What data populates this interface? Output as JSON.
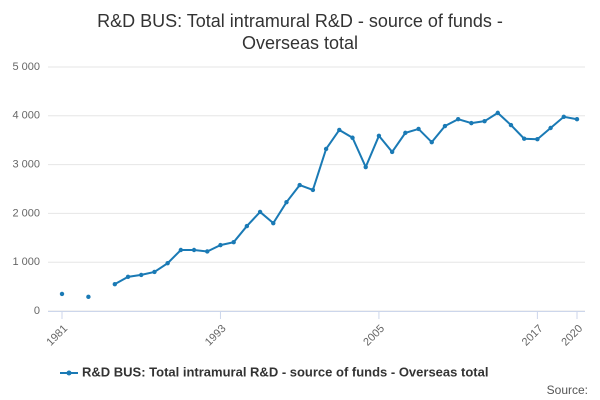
{
  "chart_data": {
    "type": "line",
    "title": "R&D BUS: Total intramural R&D - source of funds - Overseas total",
    "x": [
      1981,
      1982,
      1983,
      1984,
      1985,
      1986,
      1987,
      1988,
      1989,
      1990,
      1991,
      1992,
      1993,
      1994,
      1995,
      1996,
      1997,
      1998,
      1999,
      2000,
      2001,
      2002,
      2003,
      2004,
      2005,
      2006,
      2007,
      2008,
      2009,
      2010,
      2011,
      2012,
      2013,
      2014,
      2015,
      2016,
      2017,
      2018,
      2019,
      2020
    ],
    "series": [
      {
        "name": "R&D BUS: Total intramural R&D - source of funds - Overseas total",
        "color": "#1a7ab5",
        "values": [
          350,
          null,
          290,
          null,
          550,
          700,
          740,
          800,
          980,
          1250,
          1250,
          1220,
          1350,
          1410,
          1740,
          2030,
          1800,
          2230,
          2580,
          2480,
          3320,
          3710,
          3550,
          2950,
          3590,
          3260,
          3650,
          3730,
          3460,
          3790,
          3930,
          3850,
          3890,
          4060,
          3810,
          3530,
          3520,
          3750,
          3980,
          3930
        ]
      }
    ],
    "xlim": [
      1981,
      2020
    ],
    "xticks": [
      1981,
      1993,
      2005,
      2017,
      2020
    ],
    "ylim": [
      0,
      5000
    ],
    "yticks": [
      0,
      {
        "value": 1000,
        "label": "1 000"
      },
      {
        "value": 2000,
        "label": "2 000"
      },
      {
        "value": 3000,
        "label": "3 000"
      },
      {
        "value": 4000,
        "label": "4 000"
      },
      {
        "value": 5000,
        "label": "5 000"
      }
    ],
    "grid": true,
    "legend": "bottom",
    "source": "Source:"
  }
}
